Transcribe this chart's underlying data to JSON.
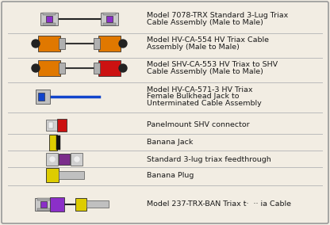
{
  "rows": [
    {
      "label": "Model 7078-TRX Standard 3-Lug Triax\nCable Assembly (Male to Male)",
      "type": "triax_purple"
    },
    {
      "label": "Model HV-CA-554 HV Triax Cable\nAssembly (Male to Male)",
      "type": "triax_orange_orange"
    },
    {
      "label": "Model SHV-CA-553 HV Triax to SHV\nCable Assembly (Male to Male)",
      "type": "triax_orange_red"
    },
    {
      "label": "Model HV-CA-571-3 HV Triax\nFemale Bulkhead Jack to\nUnterminated Cable Assembly",
      "type": "bulkhead_blue"
    },
    {
      "label": "Panelmount SHV connector",
      "type": "shv_panel"
    },
    {
      "label": "Banana Jack",
      "type": "banana_jack"
    },
    {
      "label": "Standard 3-lug triax feedthrough",
      "type": "feedthrough"
    },
    {
      "label": "Banana Plug",
      "type": "banana_plug"
    },
    {
      "label": "Model 237-TRX-BAN Triax t·  ·· ia Cable",
      "type": "triax_ban"
    }
  ],
  "bg_color": "#f2ede3",
  "border_color": "#999999",
  "text_color": "#1a1a1a",
  "line_color": "#bbbbbb",
  "font_size": 6.8
}
